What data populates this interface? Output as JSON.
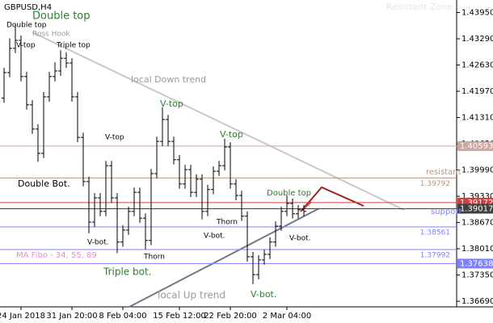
{
  "chart_data": {
    "type": "ohlc",
    "title": "GBPUSD,H4",
    "watermark": "Resistant Zone",
    "categories": [
      null,
      null,
      null,
      "24 Jan 2018",
      null,
      null,
      null,
      null,
      null,
      null,
      null,
      null,
      "31 Jan 20:00",
      null,
      null,
      null,
      null,
      null,
      null,
      null,
      null,
      "8 Feb 04:00",
      null,
      null,
      null,
      null,
      null,
      null,
      null,
      null,
      null,
      "15 Feb 12:00",
      null,
      null,
      null,
      null,
      null,
      null,
      null,
      null,
      "22 Feb 20:00",
      null,
      null,
      null,
      null,
      null,
      null,
      null,
      null,
      null,
      "2 Mar 04:00",
      null,
      null,
      null
    ],
    "open": [
      1.418,
      1.4244,
      1.4305,
      1.4325,
      1.4234,
      1.4163,
      1.4102,
      1.4041,
      1.4183,
      1.4234,
      1.4248,
      1.428,
      1.4268,
      1.4183,
      1.4081,
      1.397,
      1.3868,
      1.3929,
      1.3895,
      1.401,
      1.3929,
      1.3818,
      1.3848,
      1.3895,
      1.3943,
      1.3878,
      1.3822,
      1.399,
      1.4071,
      1.4126,
      1.4071,
      1.4025,
      1.3964,
      1.4,
      1.3943,
      1.3976,
      1.3895,
      1.395,
      1.3996,
      1.401,
      1.4057,
      1.3964,
      1.3935,
      1.3883,
      1.3781,
      1.3736,
      1.3773,
      1.3787,
      1.3818,
      1.3858,
      1.3895,
      1.3915,
      1.3889,
      1.3899
    ],
    "high": [
      1.4256,
      1.433,
      1.4365,
      1.4337,
      1.4246,
      1.4175,
      1.4114,
      1.4195,
      1.4246,
      1.427,
      1.43,
      1.4295,
      1.428,
      1.4195,
      1.4093,
      1.3982,
      1.3941,
      1.3941,
      1.4022,
      1.4022,
      1.3941,
      1.386,
      1.3907,
      1.3955,
      1.3955,
      1.389,
      1.4002,
      1.4083,
      1.4157,
      1.4138,
      1.4083,
      1.4037,
      1.4012,
      1.4012,
      1.3988,
      1.3988,
      1.3962,
      1.4008,
      1.4022,
      1.4078,
      1.4069,
      1.3976,
      1.3947,
      1.3895,
      1.3793,
      1.3785,
      1.3799,
      1.383,
      1.387,
      1.3907,
      1.3935,
      1.3927,
      1.3911,
      1.3911
    ],
    "low": [
      1.4168,
      1.4232,
      1.4293,
      1.4222,
      1.4151,
      1.409,
      1.402,
      1.4029,
      1.4171,
      1.4222,
      1.4236,
      1.4256,
      1.4171,
      1.4069,
      1.3958,
      1.384,
      1.3856,
      1.3883,
      1.3883,
      1.3917,
      1.379,
      1.3806,
      1.3836,
      1.3883,
      1.3866,
      1.38,
      1.381,
      1.3978,
      1.4059,
      1.4059,
      1.4013,
      1.3952,
      1.3952,
      1.3931,
      1.3931,
      1.3875,
      1.3883,
      1.3938,
      1.3984,
      1.3998,
      1.3952,
      1.3923,
      1.3871,
      1.3769,
      1.3712,
      1.3724,
      1.3761,
      1.3775,
      1.3806,
      1.3846,
      1.3883,
      1.3877,
      1.3877,
      1.3883
    ],
    "close": [
      1.4244,
      1.4305,
      1.4325,
      1.4234,
      1.4163,
      1.4102,
      1.4041,
      1.4183,
      1.4234,
      1.4248,
      1.428,
      1.4268,
      1.4183,
      1.4081,
      1.397,
      1.3868,
      1.3929,
      1.3895,
      1.401,
      1.3929,
      1.3818,
      1.3848,
      1.3895,
      1.3943,
      1.3878,
      1.3822,
      1.399,
      1.4071,
      1.4126,
      1.4071,
      1.4025,
      1.3964,
      1.4,
      1.3943,
      1.3976,
      1.3895,
      1.395,
      1.3996,
      1.401,
      1.4057,
      1.3964,
      1.3935,
      1.3883,
      1.3781,
      1.3736,
      1.3773,
      1.3787,
      1.3818,
      1.3858,
      1.3895,
      1.3915,
      1.3889,
      1.3899,
      1.3895
    ],
    "color": "#000000",
    "ylim": [
      1.3655,
      1.44265
    ],
    "yticks": [
      {
        "value": 1.3669,
        "label": "1.36690"
      },
      {
        "value": 1.3735,
        "label": "1.37350"
      },
      {
        "value": 1.3801,
        "label": "1.38010"
      },
      {
        "value": 1.3867,
        "label": "1.38670"
      },
      {
        "value": 1.3933,
        "label": "1.39330"
      },
      {
        "value": 1.3999,
        "label": "1.39990"
      },
      {
        "value": 1.4065,
        "label": "1.40650"
      },
      {
        "value": 1.4131,
        "label": "1.41310"
      },
      {
        "value": 1.4197,
        "label": "1.41970"
      },
      {
        "value": 1.4263,
        "label": "1.42630"
      },
      {
        "value": 1.4329,
        "label": "1.43290"
      },
      {
        "value": 1.4395,
        "label": "1.43950"
      }
    ],
    "levels": [
      {
        "value": 1.40593,
        "color": "#c8a8a0",
        "boxed": true
      },
      {
        "value": 1.39792,
        "color": "#c09080",
        "boxed": false
      },
      {
        "value": 1.39172,
        "color": "#d04040",
        "boxed": true
      },
      {
        "value": 1.39017,
        "color": "#404040",
        "boxed": true
      },
      {
        "value": 1.38561,
        "color": "#8080ff",
        "boxed": false
      },
      {
        "value": 1.37992,
        "color": "#8080ff",
        "boxed": false
      },
      {
        "value": 1.37638,
        "color": "#8080ff",
        "boxed": true
      }
    ],
    "annotations": [
      {
        "text": "Double top",
        "color": "#2e7d32"
      },
      {
        "text": "Double top",
        "color": "#000000"
      },
      {
        "text": "Ross Hook",
        "color": "#999999"
      },
      {
        "text": "V-top",
        "color": "#000000"
      },
      {
        "text": "Triple top",
        "color": "#000000"
      },
      {
        "text": "local Down trend",
        "color": "#999999"
      },
      {
        "text": "V-top",
        "color": "#2e7d32"
      },
      {
        "text": "V-top",
        "color": "#000000"
      },
      {
        "text": "V-top",
        "color": "#2e7d32"
      },
      {
        "text": "Double Bot.",
        "color": "#000000"
      },
      {
        "text": "resistant",
        "color": "#c09080"
      },
      {
        "text": "Double top",
        "color": "#2e7d32"
      },
      {
        "text": "Thorn",
        "color": "#000000"
      },
      {
        "text": "V-bot.",
        "color": "#000000"
      },
      {
        "text": "V-bot.",
        "color": "#000000"
      },
      {
        "text": "V-bot.",
        "color": "#000000"
      },
      {
        "text": "support",
        "color": "#8080ff"
      },
      {
        "text": "MA Fibo - 34, 55, 89",
        "color": "#e090d0"
      },
      {
        "text": "Thorn",
        "color": "#000000"
      },
      {
        "text": "Triple bot.",
        "color": "#2e7d32"
      },
      {
        "text": "local  Up trend",
        "color": "#999999"
      },
      {
        "text": "V-bot.",
        "color": "#2e7d32"
      }
    ]
  }
}
